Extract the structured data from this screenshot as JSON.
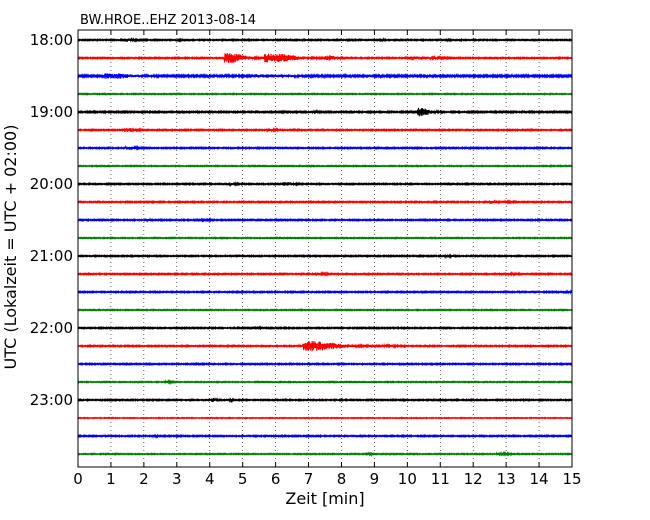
{
  "chart_data": {
    "type": "line",
    "title": "BW.HROE..EHZ 2013-08-14",
    "xlabel": "Zeit  [min]",
    "ylabel": "UTC (Lokalzeit = UTC + 02:00)",
    "xlim": [
      0,
      15
    ],
    "x_ticks": [
      0,
      1,
      2,
      3,
      4,
      5,
      6,
      7,
      8,
      9,
      10,
      11,
      12,
      13,
      14,
      15
    ],
    "y_ticks": [
      {
        "row": 0,
        "label": "18:00"
      },
      {
        "row": 4,
        "label": "19:00"
      },
      {
        "row": 8,
        "label": "20:00"
      },
      {
        "row": 12,
        "label": "21:00"
      },
      {
        "row": 16,
        "label": "22:00"
      },
      {
        "row": 20,
        "label": "23:00"
      }
    ],
    "grid": "vertical dotted",
    "trace_minutes": 15,
    "colors": [
      "#000000",
      "#ff0000",
      "#0000ff",
      "#008000"
    ],
    "series": [
      {
        "start": "18:00",
        "color": "#000000",
        "noise": 0.6,
        "events": [
          {
            "t": 1.4,
            "amp": 1.2,
            "w": 0.3
          },
          {
            "t": 3.0,
            "amp": 0.8,
            "w": 0.1
          },
          {
            "t": 9.2,
            "amp": 0.8,
            "w": 0.1
          },
          {
            "t": 11.2,
            "amp": 0.6,
            "w": 0.1
          }
        ]
      },
      {
        "start": "18:15",
        "color": "#ff0000",
        "noise": 0.6,
        "events": [
          {
            "t": 4.6,
            "amp": 4.5,
            "w": 0.5
          },
          {
            "t": 5.9,
            "amp": 4.0,
            "w": 0.8
          },
          {
            "t": 7.6,
            "amp": 2.0,
            "w": 0.3
          },
          {
            "t": 10.2,
            "amp": 1.0,
            "w": 0.8
          }
        ]
      },
      {
        "start": "18:30",
        "color": "#0000ff",
        "noise": 0.9,
        "events": [
          {
            "t": 1.0,
            "amp": 2.0,
            "w": 0.7
          },
          {
            "t": 5.5,
            "amp": 1.0,
            "w": 1.0
          }
        ]
      },
      {
        "start": "18:45",
        "color": "#008000",
        "noise": 0.5,
        "events": []
      },
      {
        "start": "19:00",
        "color": "#000000",
        "noise": 0.7,
        "events": [
          {
            "t": 10.4,
            "amp": 3.8,
            "w": 0.3
          },
          {
            "t": 7.0,
            "amp": 0.8,
            "w": 0.2
          }
        ]
      },
      {
        "start": "19:15",
        "color": "#ff0000",
        "noise": 0.6,
        "events": [
          {
            "t": 1.5,
            "amp": 1.4,
            "w": 0.3
          },
          {
            "t": 5.8,
            "amp": 1.2,
            "w": 0.2
          }
        ]
      },
      {
        "start": "19:30",
        "color": "#0000ff",
        "noise": 0.6,
        "events": [
          {
            "t": 1.5,
            "amp": 0.9,
            "w": 0.3
          }
        ]
      },
      {
        "start": "19:45",
        "color": "#008000",
        "noise": 0.5,
        "events": []
      },
      {
        "start": "20:00",
        "color": "#000000",
        "noise": 0.6,
        "events": [
          {
            "t": 6.3,
            "amp": 1.4,
            "w": 0.3
          },
          {
            "t": 4.6,
            "amp": 0.8,
            "w": 0.2
          }
        ]
      },
      {
        "start": "20:15",
        "color": "#ff0000",
        "noise": 0.6,
        "events": [
          {
            "t": 12.6,
            "amp": 1.2,
            "w": 0.4
          }
        ]
      },
      {
        "start": "20:30",
        "color": "#0000ff",
        "noise": 0.6,
        "events": [
          {
            "t": 3.8,
            "amp": 2.0,
            "w": 0.15
          },
          {
            "t": 2.1,
            "amp": 0.8,
            "w": 0.1
          }
        ]
      },
      {
        "start": "20:45",
        "color": "#008000",
        "noise": 0.5,
        "events": []
      },
      {
        "start": "21:00",
        "color": "#000000",
        "noise": 0.6,
        "events": [
          {
            "t": 11.2,
            "amp": 0.8,
            "w": 0.2
          }
        ]
      },
      {
        "start": "21:15",
        "color": "#ff0000",
        "noise": 0.6,
        "events": [
          {
            "t": 7.2,
            "amp": 1.0,
            "w": 0.3
          },
          {
            "t": 12.9,
            "amp": 1.0,
            "w": 0.3
          }
        ]
      },
      {
        "start": "21:30",
        "color": "#0000ff",
        "noise": 0.6,
        "events": [
          {
            "t": 14.8,
            "amp": 0.9,
            "w": 0.2
          }
        ]
      },
      {
        "start": "21:45",
        "color": "#008000",
        "noise": 0.5,
        "events": []
      },
      {
        "start": "22:00",
        "color": "#000000",
        "noise": 0.6,
        "events": [
          {
            "t": 5.4,
            "amp": 1.6,
            "w": 0.1
          }
        ]
      },
      {
        "start": "22:15",
        "color": "#ff0000",
        "noise": 0.6,
        "events": [
          {
            "t": 7.1,
            "amp": 4.5,
            "w": 0.9
          },
          {
            "t": 9.0,
            "amp": 1.0,
            "w": 0.6
          }
        ]
      },
      {
        "start": "22:30",
        "color": "#0000ff",
        "noise": 0.6,
        "events": []
      },
      {
        "start": "22:45",
        "color": "#008000",
        "noise": 0.5,
        "events": [
          {
            "t": 2.7,
            "amp": 0.8,
            "w": 0.2
          }
        ]
      },
      {
        "start": "23:00",
        "color": "#000000",
        "noise": 0.6,
        "events": [
          {
            "t": 4.1,
            "amp": 1.8,
            "w": 0.1
          },
          {
            "t": 4.5,
            "amp": 0.8,
            "w": 0.2
          }
        ]
      },
      {
        "start": "23:15",
        "color": "#ff0000",
        "noise": 0.4,
        "events": []
      },
      {
        "start": "23:30",
        "color": "#0000ff",
        "noise": 0.6,
        "events": [
          {
            "t": 3.0,
            "amp": 2.0,
            "w": 0.08
          },
          {
            "t": 2.3,
            "amp": 0.7,
            "w": 0.1
          }
        ]
      },
      {
        "start": "23:45",
        "color": "#008000",
        "noise": 0.5,
        "events": [
          {
            "t": 8.8,
            "amp": 1.0,
            "w": 0.1
          },
          {
            "t": 12.8,
            "amp": 0.8,
            "w": 0.3
          }
        ]
      }
    ]
  }
}
